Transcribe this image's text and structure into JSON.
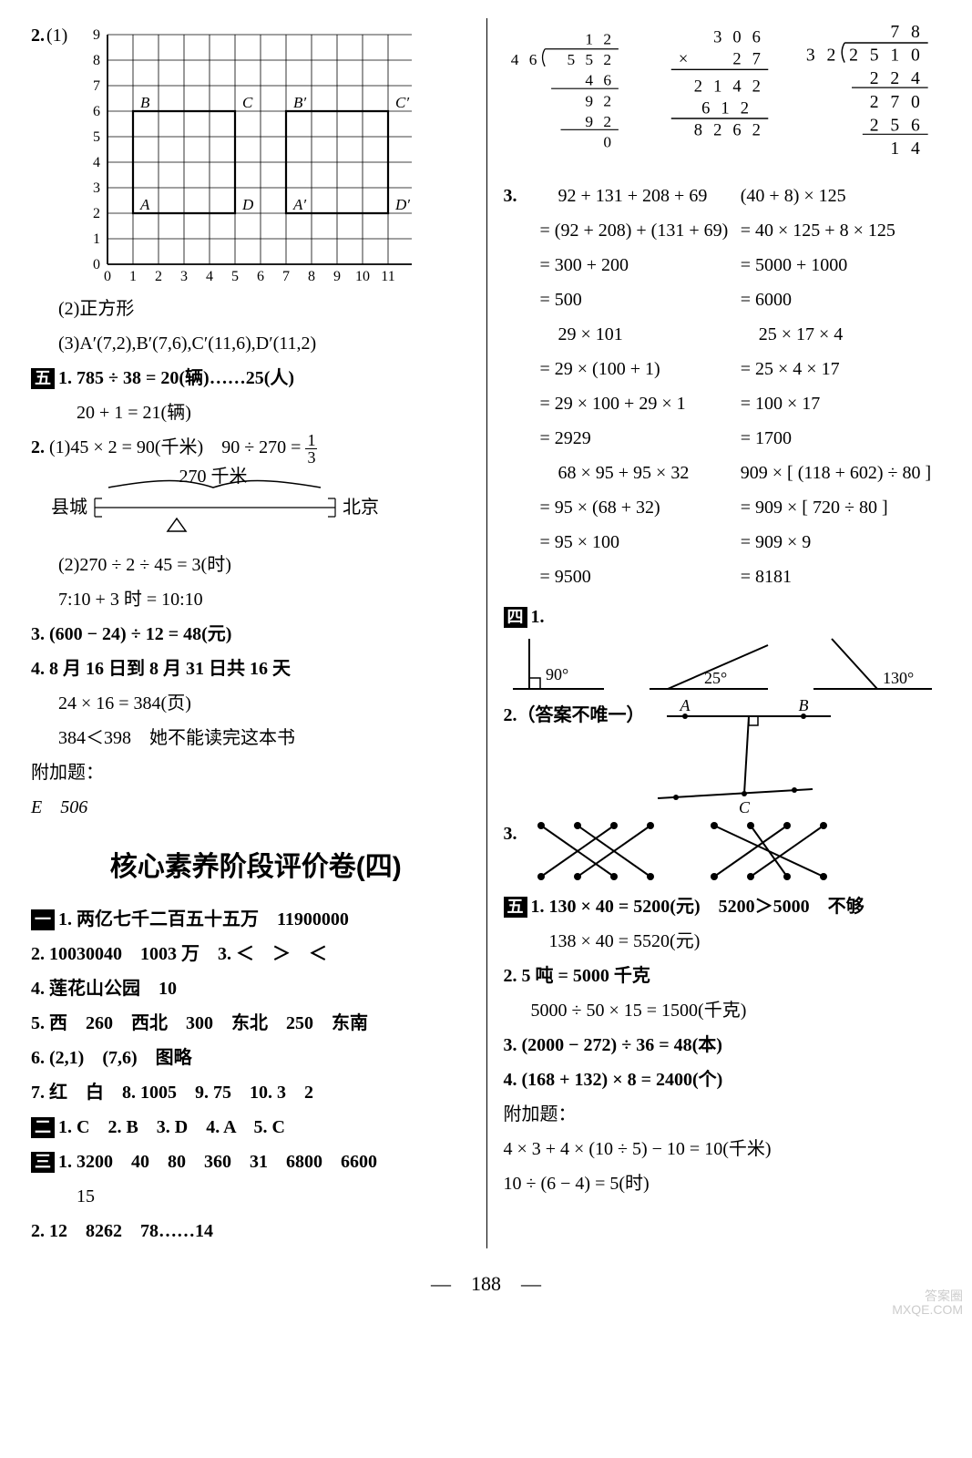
{
  "left": {
    "q2_label": "2.",
    "q2_sub1": "(1)",
    "grid": {
      "w": 12,
      "h": 9,
      "y_labels": [
        "0",
        "1",
        "2",
        "3",
        "4",
        "5",
        "6",
        "7",
        "8",
        "9"
      ],
      "x_labels": [
        "0",
        "1",
        "2",
        "3",
        "4",
        "5",
        "6",
        "7",
        "8",
        "9",
        "10",
        "11"
      ],
      "line_color": "#000",
      "points": {
        "A": {
          "x": 1,
          "y": 2,
          "label": "A"
        },
        "B": {
          "x": 1,
          "y": 6,
          "label": "B"
        },
        "C": {
          "x": 5,
          "y": 6,
          "label": "C"
        },
        "D": {
          "x": 5,
          "y": 2,
          "label": "D"
        },
        "A2": {
          "x": 7,
          "y": 2,
          "label": "A′"
        },
        "B2": {
          "x": 7,
          "y": 6,
          "label": "B′"
        },
        "C2": {
          "x": 11,
          "y": 6,
          "label": "C′"
        },
        "D2": {
          "x": 11,
          "y": 2,
          "label": "D′"
        }
      }
    },
    "q2_sub2": "(2)正方形",
    "q2_sub3": "(3)A′(7,2),B′(7,6),C′(11,6),D′(11,2)",
    "sec5": "五",
    "s5_1a": "1. 785 ÷ 38 = 20(辆)……25(人)",
    "s5_1b": "20 + 1 = 21(辆)",
    "s5_2a_pre": "2. (1)45 × 2 = 90(千米)　90 ÷ 270 = ",
    "s5_2a_frac_n": "1",
    "s5_2a_frac_d": "3",
    "diagram270": {
      "label": "270 千米",
      "left": "县城",
      "right": "北京"
    },
    "s5_2b": "(2)270 ÷ 2 ÷ 45 = 3(时)",
    "s5_2c": "7:10 + 3 时 = 10:10",
    "s5_3": "3. (600 − 24) ÷ 12 = 48(元)",
    "s5_4a": "4. 8 月 16 日到 8 月 31 日共 16 天",
    "s5_4b": "24 × 16 = 384(页)",
    "s5_4c": "384＜398　她不能读完这本书",
    "extra_label": "附加题：",
    "extra_ans": "E　506",
    "title": "核心素养阶段评价卷(四)",
    "sec1": "一",
    "p1": "1. 两亿七千二百五十五万　11900000",
    "p2": "2. 10030040　1003 万　3. ＜　＞　＜",
    "p4": "4. 莲花山公园　10",
    "p5": "5. 西　260　西北　300　东北　250　东南",
    "p6": "6. (2,1)　(7,6)　图略",
    "p7": "7. 红　白　8. 1005　9. 75　10. 3　2",
    "sec2": "二",
    "p_choice": "1. C　2. B　3. D　4. A　5. C",
    "sec3": "三",
    "p3_1a": "1. 3200　40　80　360　31　6800　6600",
    "p3_1b": "15",
    "p3_2": "2. 12　8262　78……14"
  },
  "right": {
    "longdiv": [
      {
        "type": "division",
        "divisor": "4 6",
        "dividend": "5 5 2",
        "quotient": "1 2",
        "steps": [
          "4 6",
          "9 2",
          "9 2",
          "0"
        ],
        "align": [
          0,
          1,
          1,
          2
        ]
      },
      {
        "type": "mult",
        "top": "3 0 6",
        "bottom": "2 7",
        "partials": [
          "2 1 4 2",
          "6 1 2"
        ],
        "result": "8 2 6 2"
      },
      {
        "type": "division",
        "divisor": "3 2",
        "dividend": "2 5 1 0",
        "quotient": "7 8",
        "steps": [
          "2 2 4",
          "2 7 0",
          "2 5 6",
          "1 4"
        ],
        "align": [
          0,
          1,
          1,
          2
        ]
      }
    ],
    "q3_label": "3.",
    "q3_left": [
      "　92 + 131 + 208 + 69",
      "= (92 + 208) + (131 + 69)",
      "= 300 + 200",
      "= 500",
      "　29 × 101",
      "= 29 × (100 + 1)",
      "= 29 × 100 + 29 × 1",
      "= 2929",
      "　68 × 95 + 95 × 32",
      "= 95 × (68 + 32)",
      "= 95 × 100",
      "= 9500"
    ],
    "q3_right": [
      "(40 + 8) × 125",
      "= 40 × 125 + 8 × 125",
      "= 5000 + 1000",
      "= 6000",
      "　25 × 17 × 4",
      "= 25 × 4 × 17",
      "= 100 × 17",
      "= 1700",
      "909 × [ (118 + 602) ÷ 80 ]",
      "= 909 × [ 720 ÷ 80 ]",
      "= 909 × 9",
      "= 8181"
    ],
    "sec4": "四",
    "s4_1": "1.",
    "angles": [
      {
        "deg": "90°"
      },
      {
        "deg": "25°"
      },
      {
        "deg": "130°"
      }
    ],
    "s4_2": "2.（答案不唯一）",
    "s4_2_pts": {
      "A": "A",
      "B": "B",
      "C": "C"
    },
    "s4_3": "3.",
    "sec5": "五",
    "s5_1a": "1. 130 × 40 = 5200(元)　5200＞5000　不够",
    "s5_1b": "138 × 40 = 5520(元)",
    "s5_2a": "2. 5 吨 = 5000 千克",
    "s5_2b": "5000 ÷ 50 × 15 = 1500(千克)",
    "s5_3": "3. (2000 − 272) ÷ 36 = 48(本)",
    "s5_4": "4. (168 + 132) × 8 = 2400(个)",
    "extra_label": "附加题：",
    "extra_1": "4 × 3 + 4 × (10 ÷ 5) − 10 = 10(千米)",
    "extra_2": "10 ÷ (6 − 4) = 5(时)"
  },
  "pagenum": "188",
  "watermark1": "答案圈",
  "watermark2": "MXQE.COM"
}
